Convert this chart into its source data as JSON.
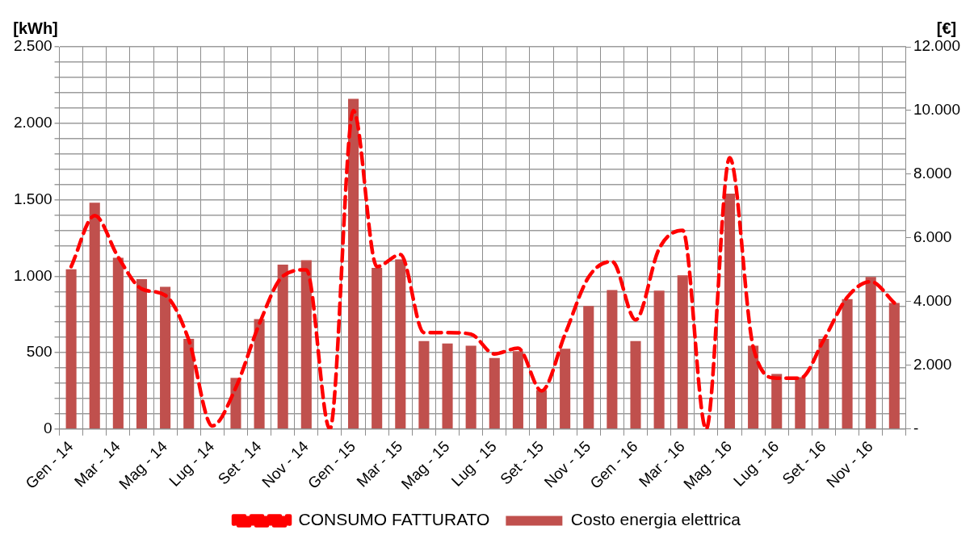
{
  "chart_data": {
    "type": "bar",
    "ylabel": "[kWh]",
    "y2label": "[€]",
    "categories": [
      "Gen - 14",
      null,
      "Mar - 14",
      null,
      "Mag - 14",
      null,
      "Lug - 14",
      null,
      "Set - 14",
      null,
      "Nov - 14",
      null,
      "Gen - 15",
      null,
      "Mar - 15",
      null,
      "Mag - 15",
      null,
      "Lug - 15",
      null,
      "Set - 15",
      null,
      "Nov - 15",
      null,
      "Gen - 16",
      null,
      "Mar - 16",
      null,
      "Mag - 16",
      null,
      "Lug - 16",
      null,
      "Set - 16",
      null,
      "Nov - 16",
      null
    ],
    "series": [
      {
        "name": "Costo energia elettrica",
        "color": "#c0504d",
        "values": [
          1045,
          1480,
          1120,
          980,
          930,
          590,
          0,
          335,
          720,
          1075,
          1105,
          0,
          2160,
          1055,
          1110,
          575,
          560,
          545,
          465,
          510,
          255,
          525,
          805,
          910,
          575,
          905,
          1005,
          0,
          1540,
          545,
          360,
          340,
          590,
          850,
          995,
          825
        ]
      },
      {
        "name": "CONSUMO FATTURATO",
        "type": "line",
        "axis": "y2",
        "color": "#ff0000",
        "line_style": "dashed",
        "marker": "none",
        "values": [
          5100,
          6700,
          5400,
          4400,
          4200,
          2800,
          100,
          1300,
          3300,
          4800,
          5000,
          0,
          10000,
          5100,
          5480,
          3030,
          3030,
          2980,
          2360,
          2540,
          1200,
          2980,
          4770,
          5260,
          3430,
          5660,
          6240,
          0,
          8520,
          2580,
          1600,
          1600,
          2800,
          4140,
          4630,
          3960
        ]
      }
    ],
    "ylim": [
      0,
      2500
    ],
    "yticks": [
      0,
      {
        "value": 100,
        "label": null
      },
      {
        "value": 200,
        "label": null
      },
      {
        "value": 300,
        "label": null
      },
      {
        "value": 400,
        "label": null
      },
      500,
      {
        "value": 600,
        "label": null
      },
      {
        "value": 700,
        "label": null
      },
      {
        "value": 800,
        "label": null
      },
      {
        "value": 900,
        "label": null
      },
      {
        "value": 1000,
        "label": "1.000"
      },
      {
        "value": 1100,
        "label": null
      },
      {
        "value": 1200,
        "label": null
      },
      {
        "value": 1300,
        "label": null
      },
      {
        "value": 1400,
        "label": null
      },
      {
        "value": 1500,
        "label": "1.500"
      },
      {
        "value": 1600,
        "label": null
      },
      {
        "value": 1700,
        "label": null
      },
      {
        "value": 1800,
        "label": null
      },
      {
        "value": 1900,
        "label": null
      },
      {
        "value": 2000,
        "label": "2.000"
      },
      {
        "value": 2100,
        "label": null
      },
      {
        "value": 2200,
        "label": null
      },
      {
        "value": 2300,
        "label": null
      },
      {
        "value": 2400,
        "label": null
      },
      {
        "value": 2500,
        "label": "2.500"
      }
    ],
    "y2lim": [
      0,
      12000
    ],
    "y2ticks": [
      {
        "value": 0,
        "label": "-"
      },
      {
        "value": 2000,
        "label": "2.000"
      },
      {
        "value": 4000,
        "label": "4.000"
      },
      {
        "value": 6000,
        "label": "6.000"
      },
      {
        "value": 8000,
        "label": "8.000"
      },
      {
        "value": 10000,
        "label": "10.000"
      },
      {
        "value": 12000,
        "label": "12.000"
      }
    ],
    "grid": true,
    "legend": "bottom"
  }
}
